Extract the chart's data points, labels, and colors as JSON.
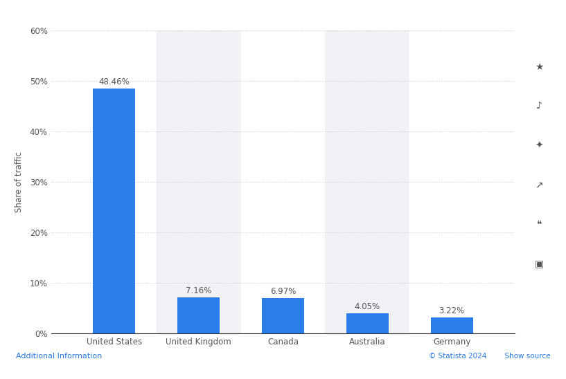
{
  "categories": [
    "United States",
    "United Kingdom",
    "Canada",
    "Australia",
    "Germany"
  ],
  "values": [
    48.46,
    7.16,
    6.97,
    4.05,
    3.22
  ],
  "bar_color": "#2b7de9",
  "ylabel": "Share of traffic",
  "ylim": [
    0,
    60
  ],
  "yticks": [
    0,
    10,
    20,
    30,
    40,
    50,
    60
  ],
  "ytick_labels": [
    "0%",
    "10%",
    "20%",
    "30%",
    "40%",
    "50%",
    "60%"
  ],
  "background_color": "#ffffff",
  "plot_bg_color": "#ffffff",
  "col_bg_even": "#f0f2f5",
  "col_bg_odd": "#ffffff",
  "bar_width": 0.5,
  "label_fontsize": 8.5,
  "tick_fontsize": 8.5,
  "ylabel_fontsize": 8.5,
  "annotations": [
    "48.46%",
    "7.16%",
    "6.97%",
    "4.05%",
    "3.22%"
  ],
  "grid_color": "#cccccc",
  "spine_color": "#333333",
  "text_color": "#555555"
}
